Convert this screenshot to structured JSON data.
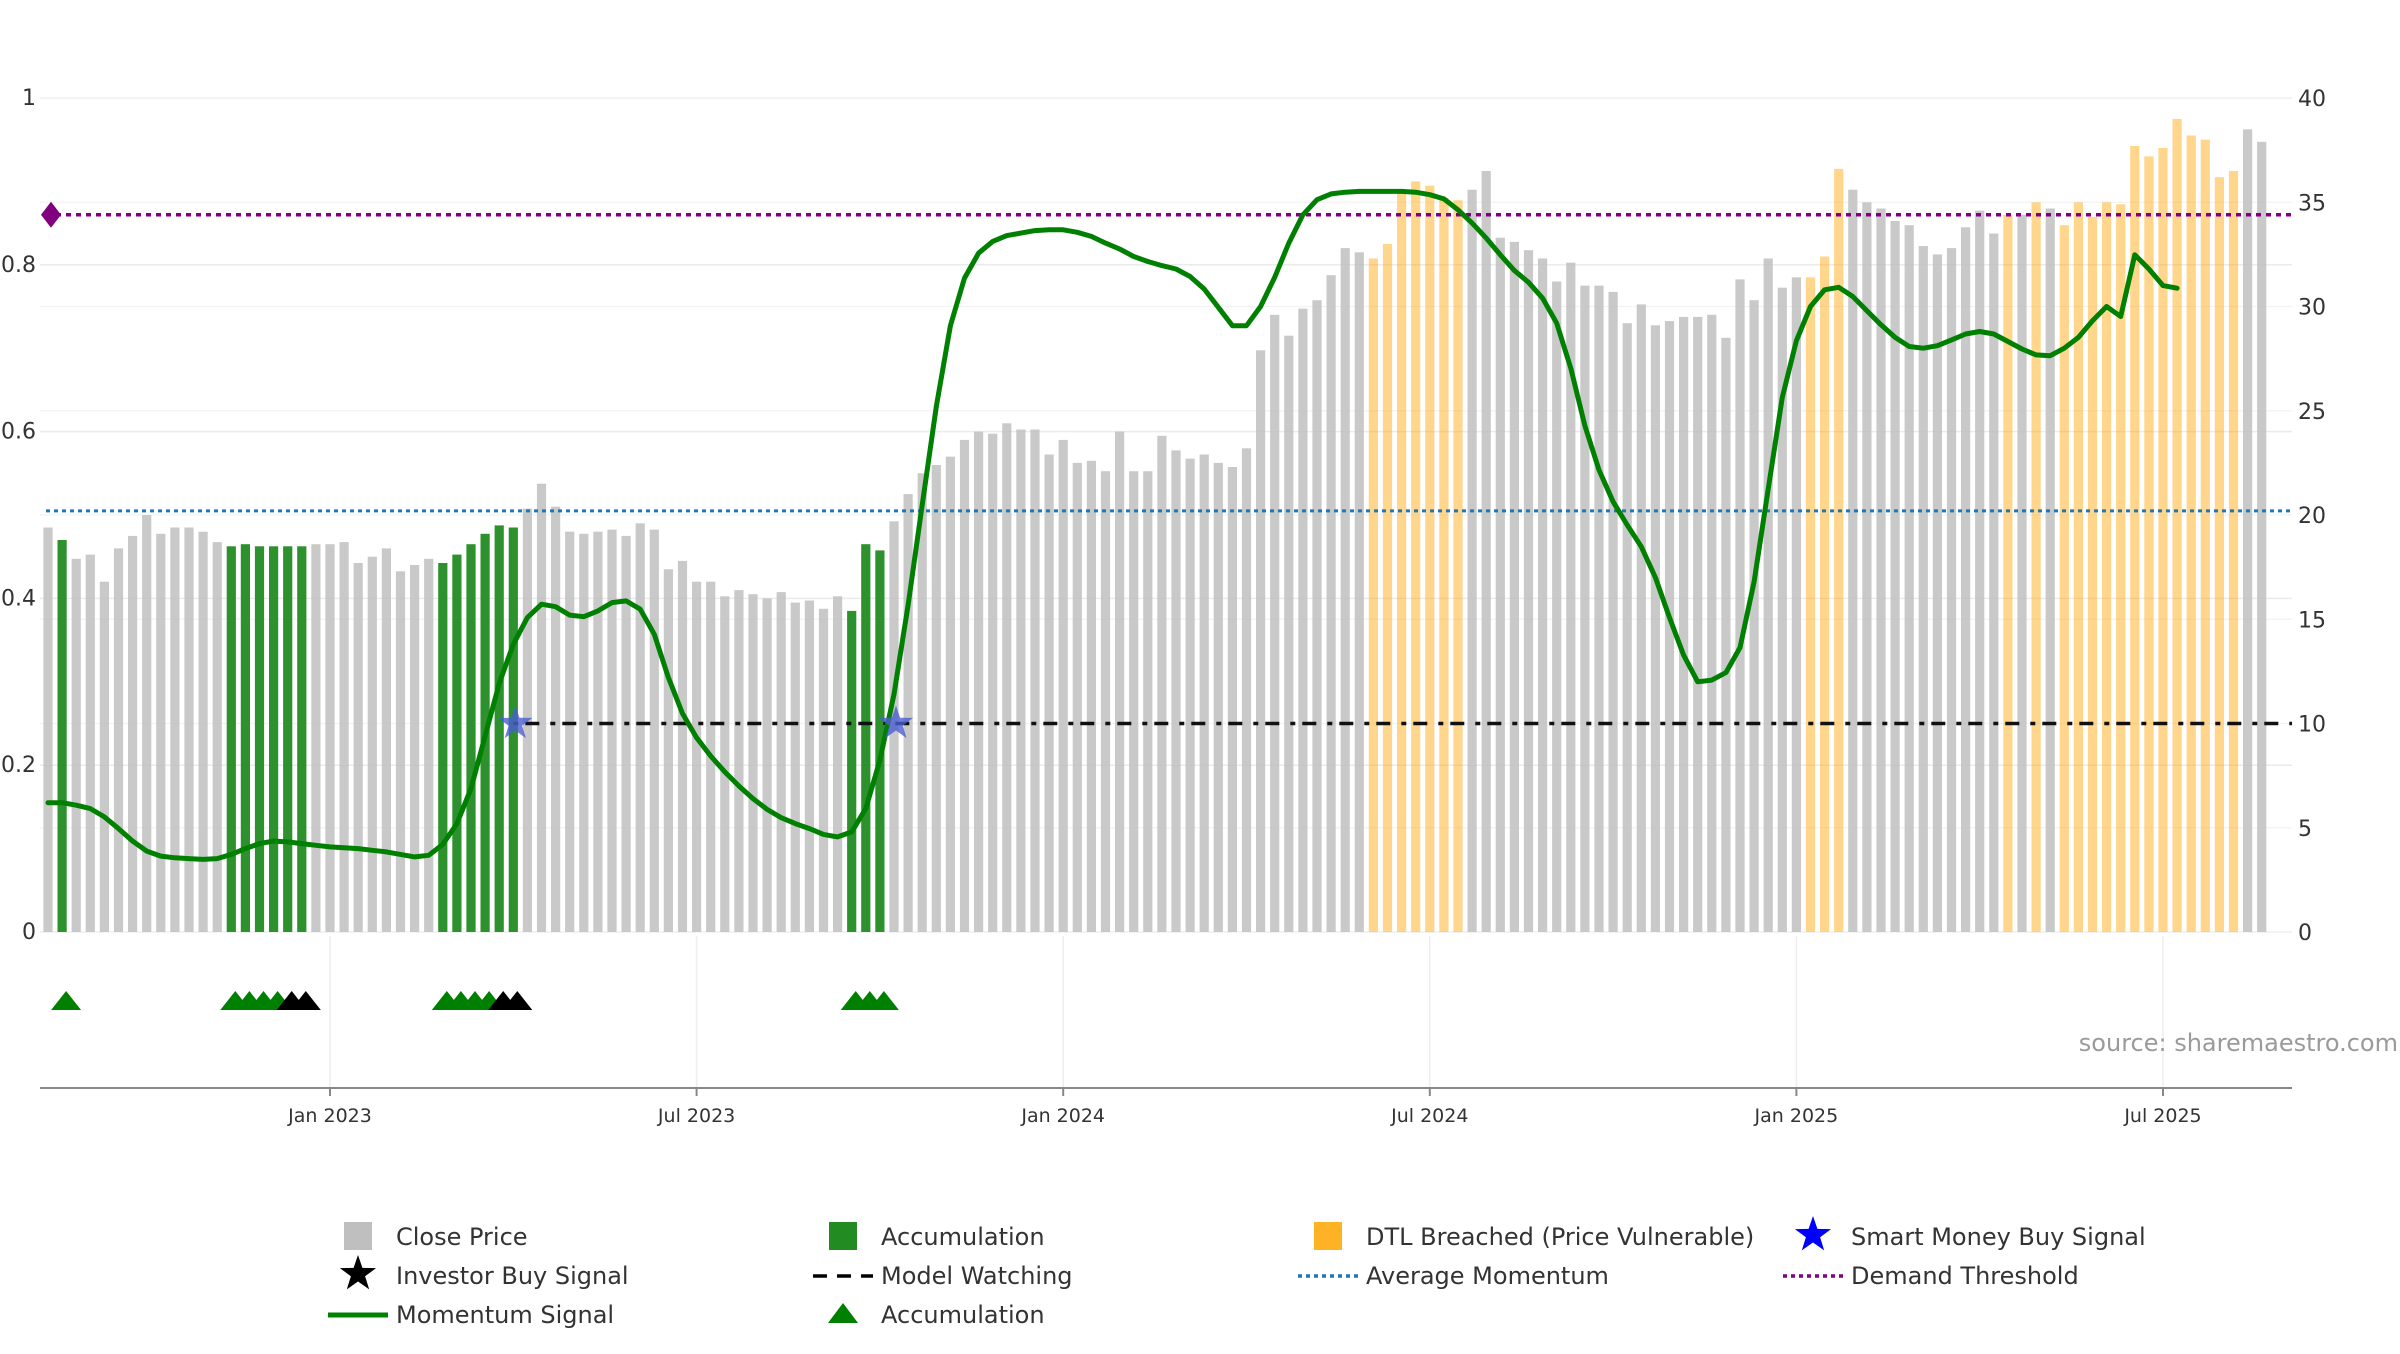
{
  "chart_data": {
    "type": "bar",
    "title": "",
    "source": "source: sharemaestro.com",
    "left_axis": {
      "range": [
        0,
        1
      ],
      "ticks": [
        "0",
        "0.2",
        "0.4",
        "0.6",
        "0.8",
        "1"
      ]
    },
    "right_axis": {
      "range": [
        0,
        40
      ],
      "ticks": [
        "0",
        "5",
        "10",
        "15",
        "20",
        "25",
        "30",
        "35",
        "40"
      ]
    },
    "x_ticks": [
      "Jan 2023",
      "Jul 2023",
      "Jan 2024",
      "Jul 2024",
      "Jan 2025",
      "Jul 2025"
    ],
    "x_tick_weeks": [
      20,
      46,
      72,
      98,
      124,
      150
    ],
    "close_prices": [
      19.4,
      18.8,
      17.9,
      18.1,
      16.8,
      18.4,
      19.0,
      20.0,
      19.1,
      19.4,
      19.4,
      19.2,
      18.7,
      18.5,
      18.6,
      18.5,
      18.5,
      18.5,
      18.5,
      18.6,
      18.6,
      18.7,
      17.7,
      18.0,
      18.4,
      17.3,
      17.6,
      17.9,
      17.7,
      18.1,
      18.6,
      19.1,
      19.5,
      19.4,
      20.3,
      21.5,
      20.4,
      19.2,
      19.1,
      19.2,
      19.3,
      19.0,
      19.6,
      19.3,
      17.4,
      17.8,
      16.8,
      16.8,
      16.1,
      16.4,
      16.2,
      16.0,
      16.3,
      15.8,
      15.9,
      15.5,
      16.1,
      15.4,
      18.6,
      18.3,
      19.7,
      21.0,
      22.0,
      22.4,
      22.8,
      23.6,
      24.0,
      23.9,
      24.4,
      24.1,
      24.1,
      22.9,
      23.6,
      22.5,
      22.6,
      22.1,
      24.0,
      22.1,
      22.1,
      23.8,
      23.1,
      22.7,
      22.9,
      22.5,
      22.3,
      23.2,
      27.9,
      29.6,
      28.6,
      29.9,
      30.3,
      31.5,
      32.8,
      32.6,
      32.3,
      33.0,
      35.5,
      36.0,
      35.8,
      35.2,
      35.1,
      35.6,
      36.5,
      33.3,
      33.1,
      32.7,
      32.3,
      31.2,
      32.1,
      31.0,
      31.0,
      30.7,
      29.2,
      30.1,
      29.1,
      29.3,
      29.5,
      29.5,
      29.6,
      28.5,
      31.3,
      30.3,
      32.3,
      30.9,
      31.4,
      31.4,
      32.4,
      36.6,
      35.6,
      35.0,
      34.7,
      34.1,
      33.9,
      32.9,
      32.5,
      32.8,
      33.8,
      34.6,
      33.5,
      34.4,
      34.4,
      35.0,
      34.7,
      33.9,
      35.0,
      34.3,
      35.0,
      34.9,
      37.7,
      37.2,
      37.6,
      39.0,
      38.2,
      38.0,
      36.2,
      36.5,
      38.5,
      37.9
    ],
    "accumulation_weeks": [
      1,
      13,
      14,
      15,
      16,
      17,
      18,
      28,
      29,
      30,
      31,
      32,
      33,
      57,
      58,
      59
    ],
    "dtl_breached_weeks": [
      94,
      95,
      96,
      97,
      98,
      99,
      100,
      125,
      126,
      127,
      139,
      141,
      143,
      144,
      145,
      146,
      147,
      148,
      149,
      150,
      151,
      152,
      153,
      154,
      155
    ],
    "momentum_signal": [
      0.155,
      0.155,
      0.152,
      0.148,
      0.138,
      0.124,
      0.109,
      0.097,
      0.091,
      0.089,
      0.088,
      0.087,
      0.088,
      0.093,
      0.1,
      0.106,
      0.109,
      0.108,
      0.106,
      0.104,
      0.102,
      0.101,
      0.1,
      0.098,
      0.096,
      0.093,
      0.09,
      0.092,
      0.105,
      0.13,
      0.172,
      0.235,
      0.298,
      0.345,
      0.377,
      0.393,
      0.39,
      0.38,
      0.378,
      0.385,
      0.395,
      0.397,
      0.387,
      0.357,
      0.305,
      0.262,
      0.233,
      0.211,
      0.192,
      0.175,
      0.16,
      0.147,
      0.137,
      0.13,
      0.124,
      0.117,
      0.114,
      0.12,
      0.148,
      0.206,
      0.285,
      0.392,
      0.512,
      0.63,
      0.727,
      0.784,
      0.814,
      0.828,
      0.835,
      0.838,
      0.841,
      0.842,
      0.842,
      0.839,
      0.834,
      0.826,
      0.819,
      0.81,
      0.804,
      0.799,
      0.795,
      0.786,
      0.771,
      0.749,
      0.727,
      0.727,
      0.75,
      0.785,
      0.826,
      0.86,
      0.878,
      0.885,
      0.887,
      0.888,
      0.888,
      0.888,
      0.888,
      0.887,
      0.884,
      0.879,
      0.866,
      0.85,
      0.832,
      0.812,
      0.793,
      0.779,
      0.76,
      0.73,
      0.676,
      0.607,
      0.554,
      0.516,
      0.488,
      0.462,
      0.425,
      0.377,
      0.332,
      0.3,
      0.302,
      0.311,
      0.341,
      0.42,
      0.531,
      0.641,
      0.709,
      0.75,
      0.77,
      0.773,
      0.762,
      0.745,
      0.728,
      0.713,
      0.702,
      0.7,
      0.703,
      0.71,
      0.717,
      0.72,
      0.717,
      0.708,
      0.699,
      0.692,
      0.691,
      0.7,
      0.713,
      0.733,
      0.75,
      0.738,
      0.812,
      0.795,
      0.775,
      0.772
    ],
    "average_momentum": 0.505,
    "demand_threshold": 0.86,
    "model_watching": {
      "value": 0.25,
      "from_week": 33
    },
    "smart_money_buy_signals": [
      {
        "week": 33,
        "value": 0.25
      },
      {
        "week": 60,
        "value": 0.25
      }
    ],
    "signal_markers": [
      {
        "week": 1,
        "type": "accumulation"
      },
      {
        "week": 13,
        "type": "accumulation"
      },
      {
        "week": 14,
        "type": "accumulation"
      },
      {
        "week": 15,
        "type": "accumulation"
      },
      {
        "week": 16,
        "type": "accumulation"
      },
      {
        "week": 17,
        "type": "investor_buy"
      },
      {
        "week": 18,
        "type": "investor_buy"
      },
      {
        "week": 28,
        "type": "accumulation"
      },
      {
        "week": 29,
        "type": "accumulation"
      },
      {
        "week": 30,
        "type": "accumulation"
      },
      {
        "week": 31,
        "type": "accumulation"
      },
      {
        "week": 32,
        "type": "investor_buy"
      },
      {
        "week": 33,
        "type": "investor_buy"
      },
      {
        "week": 57,
        "type": "accumulation"
      },
      {
        "week": 58,
        "type": "accumulation"
      },
      {
        "week": 59,
        "type": "accumulation"
      }
    ],
    "legend": [
      {
        "label": "Close Price",
        "symbol": "square",
        "color": "#bfbfbf"
      },
      {
        "label": "Accumulation",
        "symbol": "square",
        "color": "#228b22"
      },
      {
        "label": "DTL Breached (Price Vulnerable)",
        "symbol": "square",
        "color": "#ffa500"
      },
      {
        "label": "Smart Money Buy Signal",
        "symbol": "star",
        "color": "#0000ff"
      },
      {
        "label": "Investor Buy Signal",
        "symbol": "star",
        "color": "#000000"
      },
      {
        "label": "Model Watching",
        "symbol": "dash",
        "color": "#000000"
      },
      {
        "label": "Average Momentum",
        "symbol": "dotted",
        "color": "#1f77b4"
      },
      {
        "label": "Demand Threshold",
        "symbol": "dotted",
        "color": "#800080"
      },
      {
        "label": "Momentum Signal",
        "symbol": "line",
        "color": "#008000"
      },
      {
        "label": "Accumulation",
        "symbol": "triangle",
        "color": "#008000"
      }
    ],
    "colors": {
      "close": "#bfbfbf",
      "accumulation": "#228b22",
      "dtl": "#ffa500",
      "momentum": "#008000",
      "avg_momentum": "#1f77b4",
      "demand": "#800080",
      "smart_money": "#4a5ed0",
      "investor": "#000000",
      "grid": "#ebebeb",
      "axis": "#888888"
    }
  }
}
